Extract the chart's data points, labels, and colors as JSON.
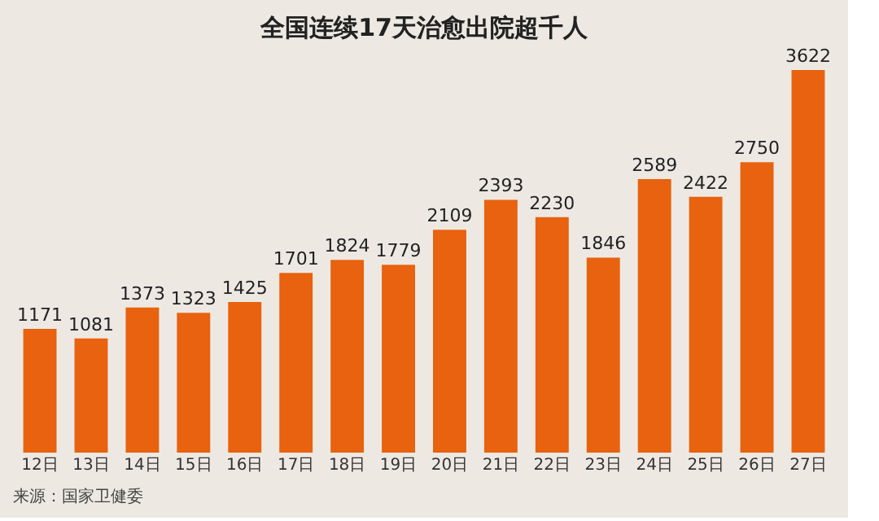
{
  "chart_data": {
    "type": "bar",
    "title": "全国连续17天治愈出院超千人",
    "categories": [
      "12日",
      "13日",
      "14日",
      "15日",
      "16日",
      "17日",
      "18日",
      "19日",
      "20日",
      "21日",
      "22日",
      "23日",
      "24日",
      "25日",
      "26日",
      "27日"
    ],
    "values": [
      1171,
      1081,
      1373,
      1323,
      1425,
      1701,
      1824,
      1779,
      2109,
      2393,
      2230,
      1846,
      2589,
      2422,
      2750,
      3622
    ],
    "color": "#e8620f",
    "data_labels": true,
    "annotations": [
      "来源：国家卫健委"
    ]
  }
}
